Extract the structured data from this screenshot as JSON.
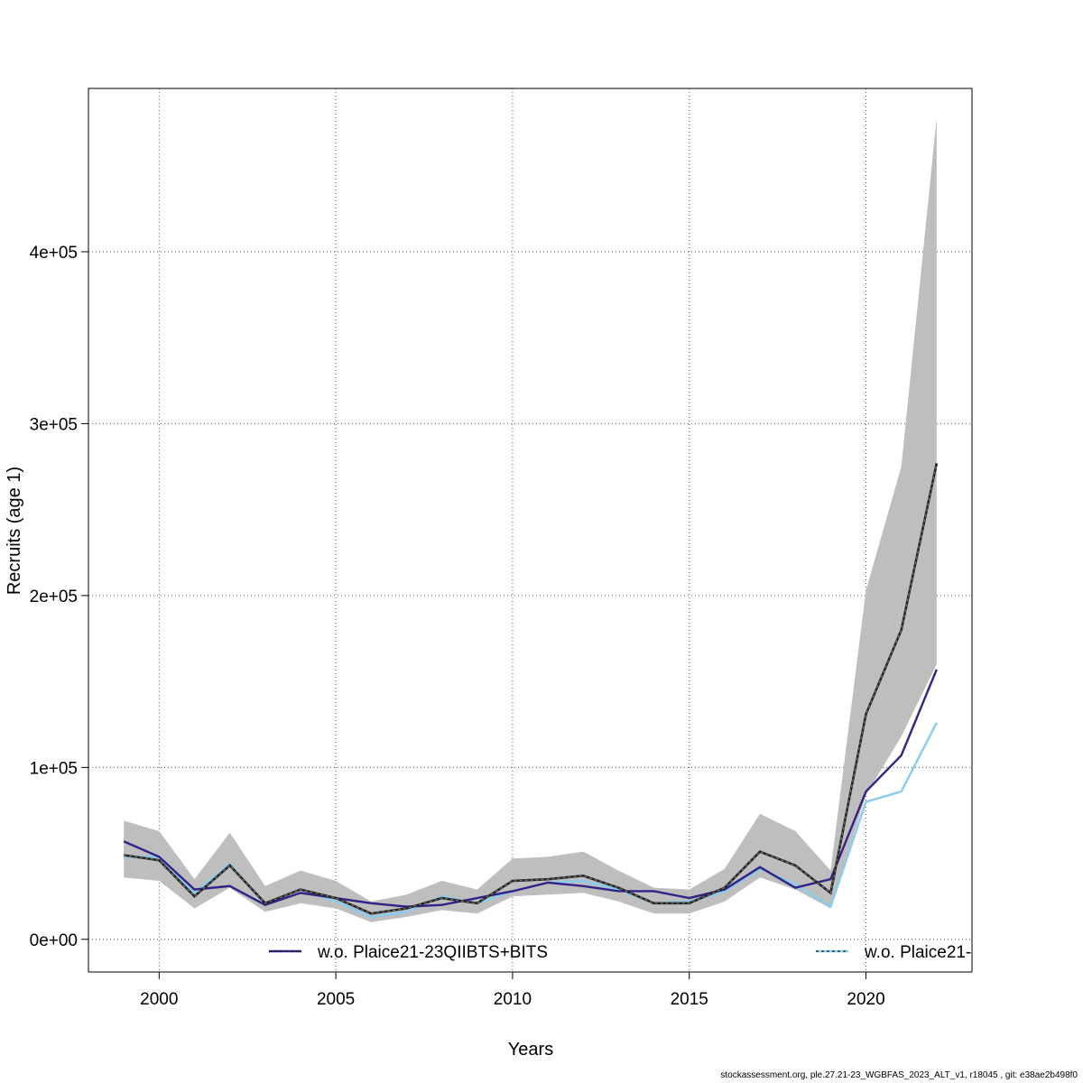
{
  "footer": "stockassessment.org, ple.27.21-23_WGBFAS_2023_ALT_v1, r18045 , git: e38ae2b498f0",
  "chart_data": {
    "type": "line",
    "xlabel": "Years",
    "ylabel": "Recruits (age 1)",
    "xlim": [
      1998,
      2023
    ],
    "ylim": [
      -19000,
      495000
    ],
    "x_ticks": [
      2000,
      2005,
      2010,
      2015,
      2020
    ],
    "x_tick_labels": [
      "2000",
      "2005",
      "2010",
      "2015",
      "2020"
    ],
    "y_ticks": [
      0,
      100000,
      200000,
      300000,
      400000
    ],
    "y_tick_labels": [
      "0e+00",
      "1e+05",
      "2e+05",
      "3e+05",
      "4e+05"
    ],
    "grid": true,
    "x": [
      1999,
      2000,
      2001,
      2002,
      2003,
      2004,
      2005,
      2006,
      2007,
      2008,
      2009,
      2010,
      2011,
      2012,
      2013,
      2014,
      2015,
      2016,
      2017,
      2018,
      2019,
      2020,
      2021,
      2022
    ],
    "band": {
      "color": "#bebebe",
      "upper": [
        69000,
        63000,
        35000,
        62000,
        31000,
        40000,
        34000,
        22000,
        26000,
        34000,
        29000,
        47000,
        48000,
        51000,
        40000,
        30000,
        29000,
        41000,
        73000,
        63000,
        40000,
        203000,
        275000,
        478000
      ],
      "lower": [
        36000,
        34000,
        18000,
        30000,
        16000,
        21000,
        18000,
        10000,
        13000,
        17000,
        15000,
        25000,
        26000,
        27000,
        22000,
        15000,
        15000,
        22000,
        36000,
        29000,
        18000,
        84000,
        118000,
        160000
      ]
    },
    "series": [
      {
        "color": "#222222",
        "dashed": true,
        "values": [
          49000,
          46000,
          25000,
          43000,
          21000,
          29000,
          24000,
          15000,
          18000,
          24000,
          21000,
          34000,
          35000,
          37000,
          30000,
          21000,
          21000,
          30000,
          51000,
          43000,
          27000,
          131000,
          180000,
          277000
        ]
      },
      {
        "name": "w.o. Plaice21-23QIIBTS+BITS",
        "color": "#332288",
        "dashed": false,
        "values": [
          57000,
          48000,
          29000,
          31000,
          20000,
          27000,
          24000,
          21000,
          19000,
          20000,
          24000,
          28000,
          33000,
          31000,
          28000,
          28000,
          24000,
          29000,
          42000,
          30000,
          35000,
          86000,
          107000,
          157000
        ]
      },
      {
        "name": "w.o. Plaice21-",
        "color": "#88ccee",
        "dashed": false,
        "values": [
          48000,
          48000,
          27000,
          44000,
          20000,
          29000,
          22000,
          13000,
          16000,
          25000,
          21000,
          28000,
          33000,
          34000,
          29000,
          21000,
          22000,
          28000,
          41000,
          32000,
          19000,
          80000,
          86000,
          126000
        ]
      }
    ],
    "legend_position": "bottom"
  }
}
